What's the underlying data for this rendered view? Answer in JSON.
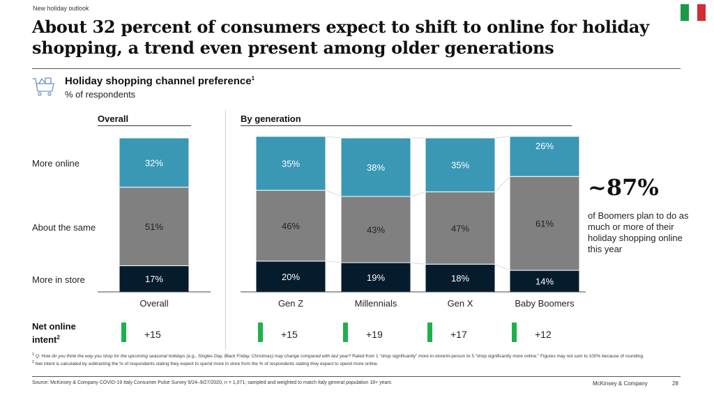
{
  "header": {
    "tracker": "New holiday outlook",
    "title": "About 32 percent of consumers expect to shift to online for holiday shopping, a trend even present among older generations",
    "flag_colors": [
      "#1a9a47",
      "#ffffff",
      "#d32c33"
    ],
    "flag_icon": "italy-flag-icon"
  },
  "chart_header": {
    "icon": "shopping-cart-icon",
    "title": "Holiday shopping channel preference",
    "title_footnote": "1",
    "subtitle": "% of respondents"
  },
  "sections": {
    "overall": "Overall",
    "by_generation": "By generation"
  },
  "row_labels": [
    "More online",
    "About the same",
    "More in store"
  ],
  "net_intent": {
    "label_line1": "Net online",
    "label_line2": "intent",
    "label_footnote": "2",
    "values": [
      "+15",
      "+15",
      "+19",
      "+17",
      "+12"
    ],
    "marker_color": "#1db14b"
  },
  "callout": {
    "value": "~87%",
    "text": "of Boomers plan to do as much or more of their holiday shopping online this year"
  },
  "colors": {
    "more_online": "#3a98b5",
    "about_same": "#808080",
    "more_in_store": "#051c2c",
    "connector": "#d9d9d9"
  },
  "chart_data": {
    "type": "bar",
    "stacked": true,
    "title": "Holiday shopping channel preference",
    "ylabel": "% of respondents",
    "categories": [
      "Overall",
      "Gen Z",
      "Millennials",
      "Gen X",
      "Baby Boomers"
    ],
    "groups": [
      {
        "name": "Overall",
        "categories": [
          "Overall"
        ]
      },
      {
        "name": "By generation",
        "categories": [
          "Gen Z",
          "Millennials",
          "Gen X",
          "Baby Boomers"
        ]
      }
    ],
    "series": [
      {
        "name": "More in store",
        "values": [
          17,
          20,
          19,
          18,
          14
        ]
      },
      {
        "name": "About the same",
        "values": [
          51,
          46,
          43,
          47,
          61
        ]
      },
      {
        "name": "More online",
        "values": [
          32,
          35,
          38,
          35,
          26
        ]
      }
    ],
    "net_online_intent": [
      15,
      15,
      19,
      17,
      12
    ],
    "ylim": [
      0,
      100
    ],
    "grid": false,
    "legend": "left"
  },
  "footnotes": {
    "fn1_italic": "Q: How do you think the way you shop for the upcoming seasonal holidays (e.g., Singles Day, Black Friday, Christmas) may change compared with last year?",
    "fn1_rest": " Rated from 1 “shop significantly” more in-store/in-person to 5 “shop significantly more online.” Figures may not sum to 100% because of rounding.",
    "fn2": "Net intent is calculated by subtracting the % of respondents stating they expect to spend more in store from the % of respondents stating they expect to spend more online."
  },
  "footer": {
    "source": "Source: McKinsey & Company COVID-19 Italy Consumer Pulse Survey 9/24–9/27/2020, n = 1,071; sampled and weighted to match Italy general population 18+ years",
    "brand": "McKinsey & Company",
    "page": "28"
  }
}
